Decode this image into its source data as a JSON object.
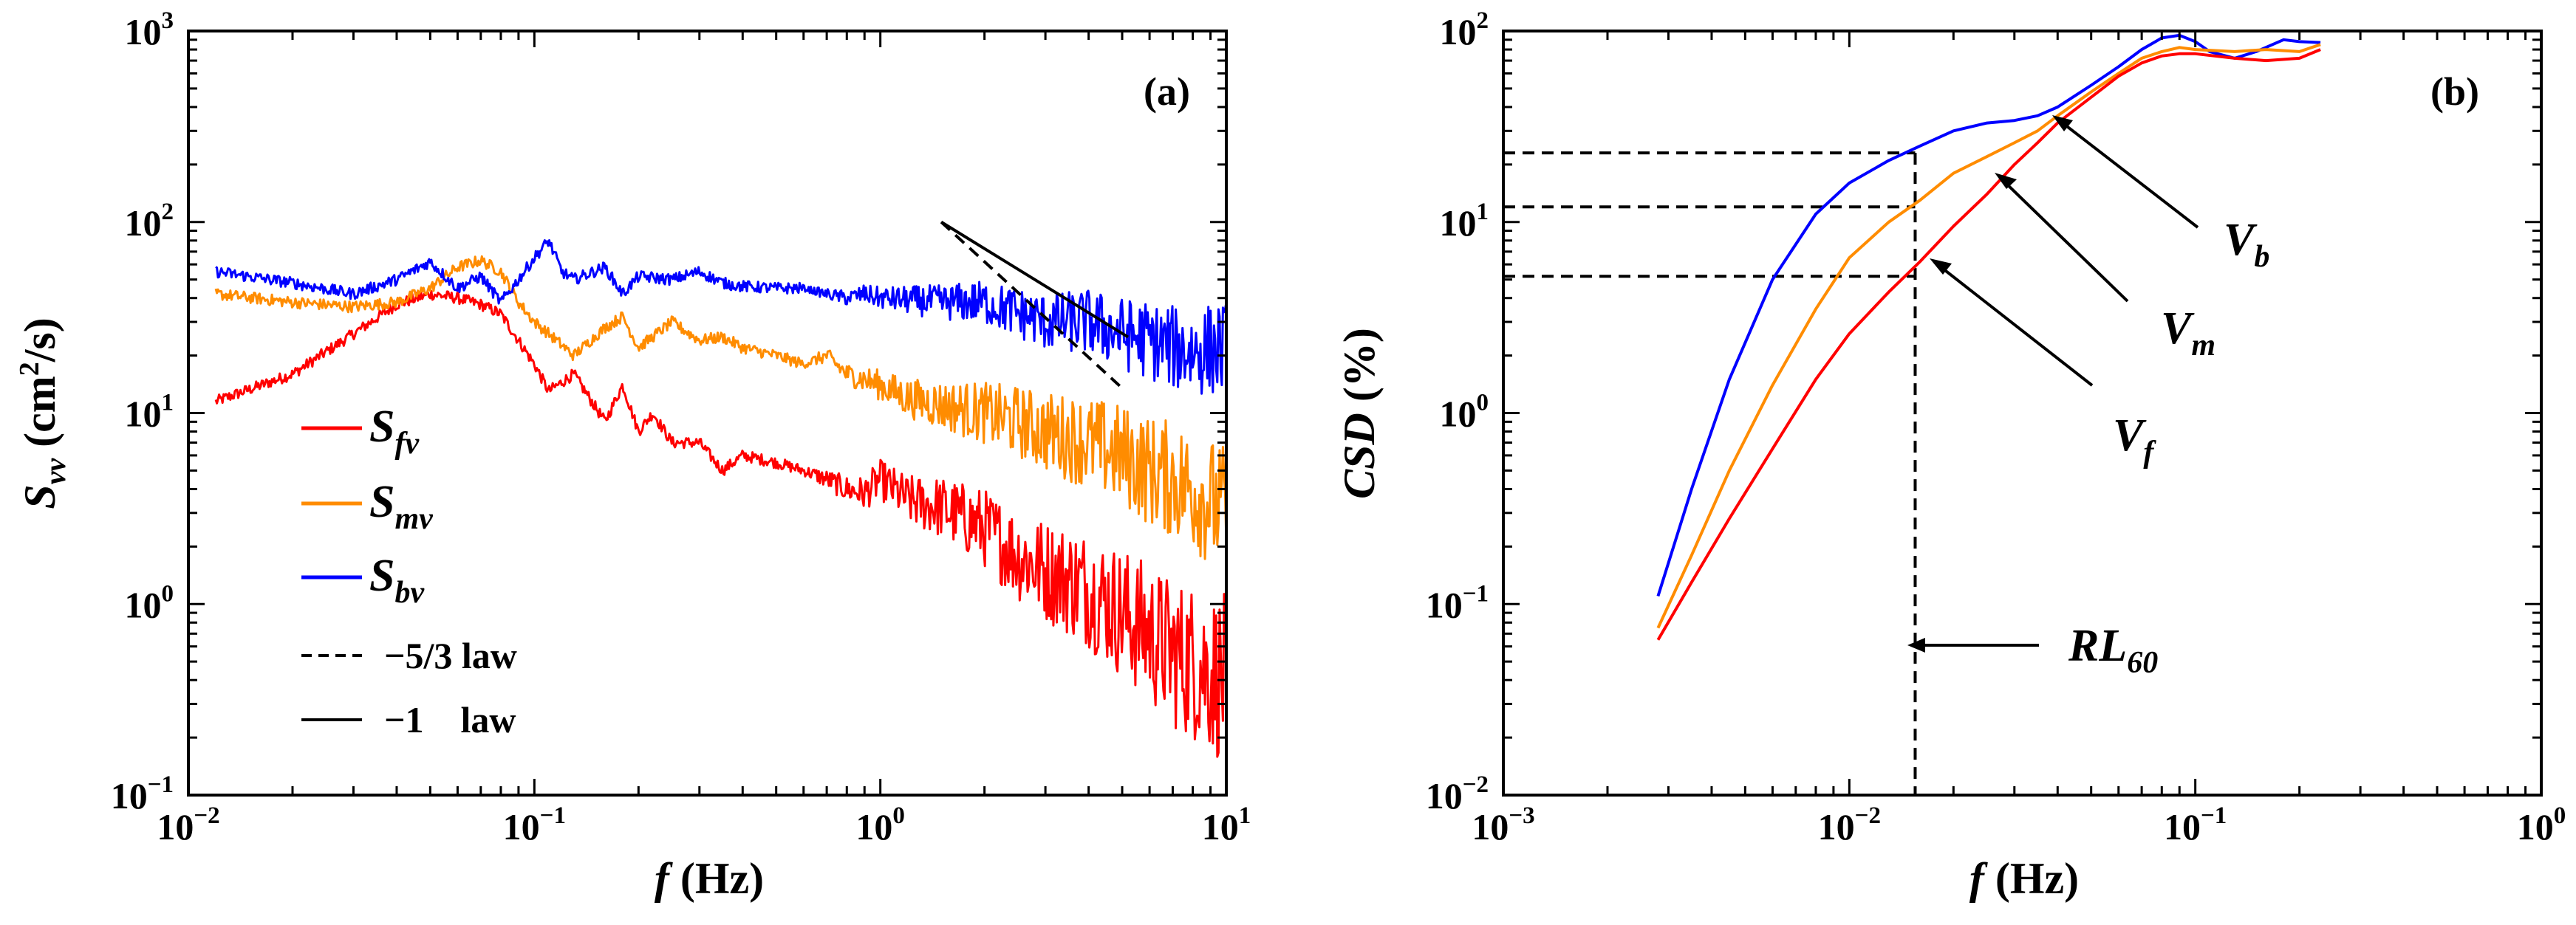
{
  "colors": {
    "red": "#ff0000",
    "orange": "#ff8c00",
    "blue": "#0000ff",
    "black": "#000000"
  },
  "chart_data": [
    {
      "panel": "(a)",
      "type": "line",
      "xscale": "log",
      "yscale": "log",
      "xlim": [
        0.01,
        10
      ],
      "ylim": [
        0.1,
        1000
      ],
      "x_ticks": [
        {
          "value": 0.01,
          "base": "10",
          "exp": "−2"
        },
        {
          "value": 0.1,
          "base": "10",
          "exp": "−1"
        },
        {
          "value": 1,
          "base": "10",
          "exp": "0"
        },
        {
          "value": 10,
          "base": "10",
          "exp": "1"
        }
      ],
      "y_ticks": [
        {
          "value": 0.1,
          "base": "10",
          "exp": "−1"
        },
        {
          "value": 1,
          "base": "10",
          "exp": "0"
        },
        {
          "value": 10,
          "base": "10",
          "exp": "1"
        },
        {
          "value": 100,
          "base": "10",
          "exp": "2"
        },
        {
          "value": 1000,
          "base": "10",
          "exp": "3"
        }
      ],
      "xlabel": {
        "var": "f",
        "unit": " (Hz)"
      },
      "ylabel": {
        "var": "S",
        "sub": "vv",
        "unit_pre": " (cm",
        "unit_sup": "2",
        "unit_post": "/s)"
      },
      "legend": {
        "placement": "lower-left",
        "entries": [
          {
            "base": "S",
            "sub": "fv",
            "color": "#ff0000",
            "style": "solid"
          },
          {
            "base": "S",
            "sub": "mv",
            "color": "#ff8c00",
            "style": "solid"
          },
          {
            "base": "S",
            "sub": "bv",
            "color": "#0000ff",
            "style": "solid"
          },
          {
            "label": "−5/3 law",
            "color": "#000000",
            "style": "dashed"
          },
          {
            "label": "−1    law",
            "color": "#000000",
            "style": "solid"
          }
        ]
      },
      "series": [
        {
          "name": "Sfv",
          "color": "#ff0000",
          "x": [
            0.012,
            0.02,
            0.03,
            0.04,
            0.05,
            0.06,
            0.07,
            0.08,
            0.09,
            0.1,
            0.11,
            0.13,
            0.16,
            0.18,
            0.2,
            0.22,
            0.25,
            0.3,
            0.35,
            0.4,
            0.5,
            0.6,
            0.7,
            0.8,
            0.9,
            1.0,
            1.2,
            1.5,
            2.0,
            2.5,
            3.0,
            4.0,
            5.0,
            6.0,
            7.0,
            8.0,
            10.0
          ],
          "y": [
            11.5,
            16,
            26,
            37,
            42,
            40,
            37,
            33,
            24,
            18,
            13,
            16,
            9,
            14,
            8,
            10,
            7,
            7,
            5,
            6,
            5.5,
            5,
            4.5,
            4,
            3.8,
            4.5,
            3.5,
            3.2,
            2.5,
            1.8,
            1.5,
            1.2,
            0.9,
            0.7,
            0.55,
            0.5,
            0.4
          ],
          "noise": 0.45
        },
        {
          "name": "Smv",
          "color": "#ff8c00",
          "x": [
            0.012,
            0.02,
            0.03,
            0.04,
            0.05,
            0.06,
            0.07,
            0.08,
            0.09,
            0.1,
            0.11,
            0.13,
            0.16,
            0.18,
            0.2,
            0.25,
            0.3,
            0.35,
            0.4,
            0.5,
            0.6,
            0.7,
            0.8,
            0.9,
            1.0,
            1.2,
            1.5,
            2.0,
            2.5,
            3.0,
            4.0,
            5.0,
            6.0,
            7.0,
            8.0,
            10.0
          ],
          "y": [
            42,
            38,
            36,
            38,
            45,
            58,
            63,
            55,
            38,
            30,
            26,
            20,
            28,
            32,
            22,
            30,
            24,
            25,
            22,
            20,
            18,
            20,
            16,
            15,
            14,
            12,
            11,
            10,
            9,
            8,
            7,
            6,
            5,
            4.5,
            4,
            3
          ],
          "noise": 0.35
        },
        {
          "name": "Sbv",
          "color": "#0000ff",
          "x": [
            0.012,
            0.02,
            0.03,
            0.04,
            0.05,
            0.06,
            0.07,
            0.08,
            0.09,
            0.1,
            0.11,
            0.12,
            0.13,
            0.16,
            0.18,
            0.2,
            0.25,
            0.3,
            0.35,
            0.4,
            0.5,
            0.6,
            0.7,
            0.8,
            0.9,
            1.0,
            1.5,
            2.0,
            3.0,
            4.0,
            5.0,
            6.0,
            7.0,
            8.0,
            10.0
          ],
          "y": [
            55,
            48,
            42,
            50,
            62,
            45,
            52,
            38,
            50,
            65,
            80,
            55,
            50,
            58,
            42,
            52,
            50,
            55,
            48,
            46,
            45,
            45,
            42,
            40,
            42,
            40,
            38,
            38,
            30,
            30,
            26,
            24,
            22,
            21,
            22
          ],
          "noise": 0.25
        }
      ],
      "reference_lines": [
        {
          "name": "−5/3 law",
          "style": "dashed",
          "x": [
            1.5,
            5.0
          ],
          "y": [
            100,
            13.5
          ]
        },
        {
          "name": "−1 law",
          "style": "solid",
          "x": [
            1.5,
            5.2
          ],
          "y": [
            100,
            25
          ]
        }
      ]
    },
    {
      "panel": "(b)",
      "type": "line",
      "xscale": "log",
      "yscale": "log",
      "xlim": [
        0.001,
        1
      ],
      "ylim": [
        0.01,
        100
      ],
      "x_ticks": [
        {
          "value": 0.001,
          "base": "10",
          "exp": "−3"
        },
        {
          "value": 0.01,
          "base": "10",
          "exp": "−2"
        },
        {
          "value": 0.1,
          "base": "10",
          "exp": "−1"
        },
        {
          "value": 1,
          "base": "10",
          "exp": "0"
        }
      ],
      "y_ticks": [
        {
          "value": 0.01,
          "base": "10",
          "exp": "−2"
        },
        {
          "value": 0.1,
          "base": "10",
          "exp": "−1"
        },
        {
          "value": 1,
          "base": "10",
          "exp": "0"
        },
        {
          "value": 10,
          "base": "10",
          "exp": "1"
        },
        {
          "value": 100,
          "base": "10",
          "exp": "2"
        }
      ],
      "xlabel": {
        "var": "f",
        "unit": " (Hz)"
      },
      "ylabel": {
        "var": "CSD",
        "unit": " (%)"
      },
      "series": [
        {
          "name": "Vb",
          "color": "#0000ff",
          "x": [
            0.0028,
            0.0035,
            0.0045,
            0.006,
            0.008,
            0.01,
            0.013,
            0.016,
            0.02,
            0.025,
            0.03,
            0.035,
            0.04,
            0.05,
            0.06,
            0.07,
            0.08,
            0.09,
            0.1,
            0.11,
            0.13,
            0.15,
            0.18,
            0.2,
            0.23
          ],
          "y": [
            0.11,
            0.4,
            1.5,
            5,
            11,
            16,
            21,
            25,
            30,
            33,
            34,
            36,
            40,
            52,
            65,
            80,
            92,
            95,
            88,
            78,
            72,
            78,
            90,
            88,
            87
          ]
        },
        {
          "name": "Vm",
          "color": "#ff8c00",
          "x": [
            0.0028,
            0.0035,
            0.0045,
            0.006,
            0.008,
            0.01,
            0.013,
            0.016,
            0.02,
            0.025,
            0.03,
            0.035,
            0.04,
            0.05,
            0.06,
            0.07,
            0.08,
            0.09,
            0.1,
            0.13,
            0.16,
            0.2,
            0.23
          ],
          "y": [
            0.075,
            0.18,
            0.5,
            1.4,
            3.5,
            6.5,
            10,
            13,
            18,
            22,
            26,
            30,
            36,
            48,
            60,
            72,
            78,
            82,
            80,
            78,
            80,
            78,
            85
          ]
        },
        {
          "name": "Vf",
          "color": "#ff0000",
          "x": [
            0.0028,
            0.0035,
            0.0045,
            0.006,
            0.008,
            0.01,
            0.013,
            0.016,
            0.02,
            0.025,
            0.03,
            0.035,
            0.04,
            0.05,
            0.06,
            0.07,
            0.08,
            0.09,
            0.1,
            0.13,
            0.16,
            0.2,
            0.23
          ],
          "y": [
            0.065,
            0.13,
            0.28,
            0.65,
            1.5,
            2.6,
            4.3,
            6.2,
            9.5,
            14,
            20,
            26,
            33,
            45,
            58,
            68,
            74,
            76,
            76,
            72,
            70,
            72,
            80
          ]
        }
      ],
      "guides": {
        "rl60_x": 0.0155,
        "y_levels": [
          23,
          12,
          5.2
        ]
      },
      "annotations": [
        {
          "base": "V",
          "sub": "b",
          "target_x": 0.04,
          "target_y": 36
        },
        {
          "base": "V",
          "sub": "m",
          "target_x": 0.022,
          "target_y": 18
        },
        {
          "base": "V",
          "sub": "f",
          "target_x": 0.018,
          "target_y": 6
        },
        {
          "base": "RL",
          "sub": "60",
          "target_x": 0.0155,
          "target_y": 0.048
        }
      ]
    }
  ]
}
